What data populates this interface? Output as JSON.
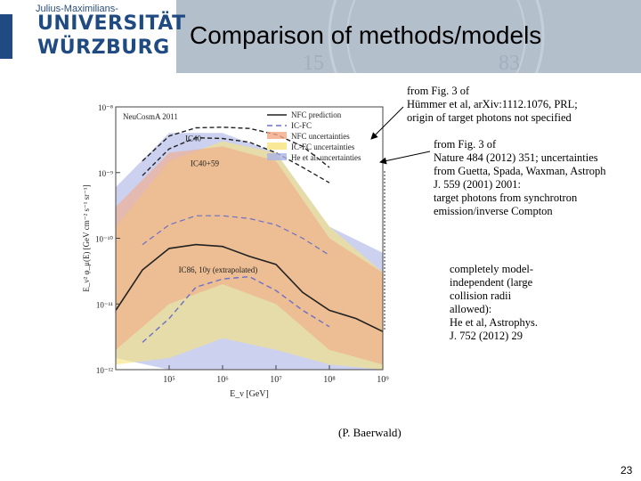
{
  "header": {
    "logo_small": "Julius-Maximilians-",
    "logo_line1": "UNIVERSITÄT",
    "logo_line2": "WÜRZBURG",
    "seal_numbers": [
      "15",
      "83"
    ],
    "title": "Comparison of methods/models"
  },
  "annotations": [
    {
      "lines": [
        "from Fig. 3 of",
        "Hümmer et al, arXiv:1112.1076, PRL;",
        "origin of target photons not specified"
      ]
    },
    {
      "lines": [
        "from Fig. 3 of",
        "Nature 484 (2012) 351; uncertainties",
        "from Guetta, Spada, Waxman, Astroph",
        "J. 559 (2001) 2001:",
        "target photons from synchrotron",
        "emission/inverse Compton"
      ]
    },
    {
      "lines": [
        "completely model-",
        "independent (large",
        "collision radii",
        "allowed):",
        "He et al, Astrophys.",
        "J. 752 (2012) 29"
      ]
    }
  ],
  "credit": "(P. Baerwald)",
  "page_number": "23",
  "chart_data": {
    "type": "line",
    "xscale": "log",
    "yscale": "log",
    "xlim": [
      10000,
      1000000000
    ],
    "ylim": [
      1e-12,
      1e-08
    ],
    "xlabel": "E_ν [GeV]",
    "ylabel": "E_ν² φ_μ(E) [GeV cm⁻² s⁻¹ sr⁻¹]",
    "x_ticks": [
      "10⁵",
      "10⁶",
      "10⁷",
      "10⁸",
      "10⁹"
    ],
    "y_ticks": [
      "10⁻⁸",
      "10⁻⁹",
      "10⁻¹⁰",
      "10⁻¹¹",
      "10⁻¹²"
    ],
    "inset_label": "NeuCosmA 2011",
    "legend": [
      "NFC prediction",
      "IC-FC",
      "NFC uncertainties",
      "IC-FC uncertainties",
      "He et al. uncertainties"
    ],
    "annotations": [
      "IC40",
      "IC40+59",
      "IC86, 10y (extrapolated)"
    ],
    "colors": {
      "nfc_band": "#f2a886",
      "icfc_band": "#f7e27a",
      "he_band": "#aab3e6",
      "nfc_line": "#222222",
      "icfc_line": "#6b70c8"
    },
    "series": [
      {
        "name": "NFC prediction",
        "x": [
          10000,
          31620,
          100000,
          316200,
          1000000,
          3162000,
          10000000,
          31620000,
          100000000,
          316200000,
          1000000000
        ],
        "y": [
          8e-12,
          3.3e-11,
          7e-11,
          8e-11,
          7.5e-11,
          5.3e-11,
          4e-11,
          1.5e-11,
          8e-12,
          6e-12,
          3.8e-12
        ]
      },
      {
        "name": "IC-FC",
        "x": [
          31620,
          100000,
          316200,
          1000000,
          3162000,
          10000000,
          31620000,
          100000000
        ],
        "y": [
          2.6e-12,
          6e-12,
          1.8e-11,
          2.4e-11,
          2.6e-11,
          1.6e-11,
          8e-12,
          4.5e-12
        ]
      },
      {
        "name": "IC40",
        "x": [
          31620,
          100000,
          316200,
          1000000,
          3162000,
          10000000,
          31620000,
          100000000
        ],
        "y": [
          1.5e-09,
          3.6e-09,
          4.8e-09,
          4.9e-09,
          4.7e-09,
          3.8e-09,
          2.5e-09,
          1.2e-09
        ]
      },
      {
        "name": "IC40+59",
        "x": [
          31620,
          100000,
          316200,
          1000000,
          3162000,
          10000000,
          31620000,
          100000000
        ],
        "y": [
          9e-10,
          2.3e-09,
          3.4e-09,
          3.3e-09,
          2.9e-09,
          2e-09,
          1.2e-09,
          7e-10
        ]
      },
      {
        "name": "IC86, 10y (extrapolated)",
        "x": [
          31620,
          100000,
          316200,
          1000000,
          3162000,
          10000000,
          31620000,
          100000000
        ],
        "y": [
          8e-11,
          1.6e-10,
          2.2e-10,
          2.2e-10,
          2e-10,
          1.6e-10,
          1e-10,
          5.5e-11
        ]
      }
    ],
    "bands": [
      {
        "name": "He et al. uncertainties",
        "x": [
          10000,
          100000,
          1000000,
          10000000,
          100000000,
          1000000000
        ],
        "upper": [
          6e-10,
          4e-09,
          4e-09,
          2e-09,
          1.5e-10,
          6e-11
        ],
        "lower": [
          1.5e-12,
          1e-12,
          1e-12,
          1e-12,
          1e-12,
          1e-12
        ]
      },
      {
        "name": "IC-FC uncertainties",
        "x": [
          10000,
          100000,
          1000000,
          10000000,
          100000000,
          1000000000
        ],
        "upper": [
          1.5e-10,
          1.5e-09,
          3e-09,
          2e-09,
          1.5e-10,
          3e-11
        ],
        "lower": [
          1.2e-12,
          1.5e-12,
          3e-12,
          2e-12,
          1.2e-12,
          1e-12
        ]
      },
      {
        "name": "NFC uncertainties",
        "x": [
          10000,
          100000,
          1000000,
          10000000,
          100000000,
          1000000000
        ],
        "upper": [
          3e-10,
          2e-09,
          2.5e-09,
          1.5e-09,
          1e-10,
          3e-11
        ],
        "lower": [
          2e-12,
          1e-11,
          2e-11,
          1e-11,
          2e-12,
          1.2e-12
        ]
      }
    ]
  }
}
